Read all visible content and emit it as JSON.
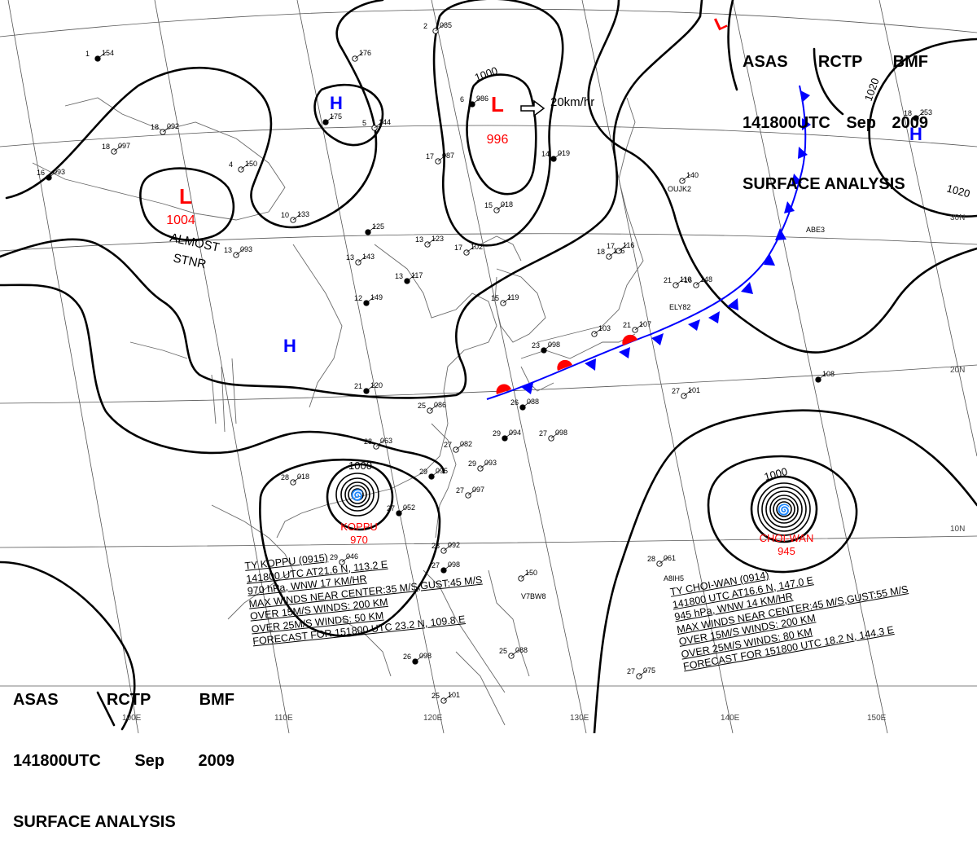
{
  "header": {
    "line1": [
      "ASAS",
      "RCTP",
      "BMF"
    ],
    "line2": [
      "141800UTC",
      "Sep",
      "2009"
    ],
    "line3": "SURFACE ANALYSIS"
  },
  "colors": {
    "low": "#ff0000",
    "high": "#0000ff",
    "front_warm": "#ff0000",
    "front_cold": "#0000ff",
    "isobar": "#000000",
    "grid": "#555555"
  },
  "pressure_centers": [
    {
      "type": "L",
      "label": "L",
      "value": "1004"
    },
    {
      "type": "L",
      "label": "L",
      "value": "996"
    },
    {
      "type": "H",
      "label": "H",
      "value": ""
    },
    {
      "type": "H",
      "label": "H",
      "value": ""
    },
    {
      "type": "H",
      "label": "H",
      "value": ""
    }
  ],
  "isobar_labels": [
    "1000",
    "1000",
    "1000",
    "1020",
    "1020"
  ],
  "annotations": {
    "almost_stnr": [
      "ALMOST",
      "STNR"
    ],
    "motion": "20km/hr"
  },
  "latitude_labels": [
    "30N",
    "20N",
    "10N"
  ],
  "longitude_labels": [
    "100E",
    "110E",
    "120E",
    "130E",
    "140E",
    "150E"
  ],
  "typhoons": [
    {
      "name": "KOPPU",
      "pressure": "970",
      "info": [
        "TY  KOPPU  (0915)",
        "141800 UTC  AT21.6 N, 113.2 E",
        "970 hPa, WNW  17 KM/HR",
        "MAX WINDS NEAR CENTER:35 M/S,GUST:45 M/S",
        "OVER 15M/S WINDS: 200 KM",
        "OVER 25M/S WINDS: 50 KM",
        "FORECAST FOR 151800 UTC 23.2 N, 109.8 E"
      ]
    },
    {
      "name": "CHOI-WAN",
      "pressure": "945",
      "info": [
        "TY  CHOI-WAN  (0914)",
        "141800 UTC  AT16.6 N, 147.0 E",
        "945 hPa, WNW  14 KM/HR",
        "MAX WINDS NEAR CENTER:45 M/S,GUST:55 M/S",
        "OVER 15M/S WINDS: 200 KM",
        "OVER 25M/S WINDS: 80 KM",
        "FORECAST FOR 151800 UTC 18.2 N, 144.3 E"
      ]
    }
  ],
  "station_plots": [
    {
      "p": "154",
      "t": "1"
    },
    {
      "p": "097",
      "t": "18"
    },
    {
      "p": "092",
      "t": "18"
    },
    {
      "p": "093",
      "t": "16"
    },
    {
      "p": "150",
      "t": "4"
    },
    {
      "p": "176",
      "t": ""
    },
    {
      "p": "175",
      "t": ""
    },
    {
      "p": "144",
      "t": "5"
    },
    {
      "p": "133",
      "t": "10"
    },
    {
      "p": "125",
      "t": ""
    },
    {
      "p": "093",
      "t": "13"
    },
    {
      "p": "143",
      "t": "13"
    },
    {
      "p": "149",
      "t": "12"
    },
    {
      "p": "123",
      "t": "13"
    },
    {
      "p": "102",
      "t": "17"
    },
    {
      "p": "117",
      "t": "13"
    },
    {
      "p": "119",
      "t": "15"
    },
    {
      "p": "116",
      "t": "18"
    },
    {
      "p": "120",
      "t": "21"
    },
    {
      "p": "086",
      "t": "25"
    },
    {
      "p": "085",
      "t": "2"
    },
    {
      "p": "986",
      "t": "6"
    },
    {
      "p": "087",
      "t": "17"
    },
    {
      "p": "018",
      "t": "15"
    },
    {
      "p": "019",
      "t": "14"
    },
    {
      "p": "116",
      "t": "17"
    },
    {
      "p": "110",
      "t": "21"
    },
    {
      "p": "098",
      "t": "23"
    },
    {
      "p": "103",
      "t": ""
    },
    {
      "p": "107",
      "t": "21"
    },
    {
      "p": "088",
      "t": "26"
    },
    {
      "p": "063",
      "t": "28"
    },
    {
      "p": "082",
      "t": "27"
    },
    {
      "p": "094",
      "t": "29"
    },
    {
      "p": "098",
      "t": "27"
    },
    {
      "p": "093",
      "t": "29"
    },
    {
      "p": "095",
      "t": "29"
    },
    {
      "p": "097",
      "t": "27"
    },
    {
      "p": "018",
      "t": "28"
    },
    {
      "p": "052",
      "t": "27"
    },
    {
      "p": "046",
      "t": "29"
    },
    {
      "p": "092",
      "t": "28"
    },
    {
      "p": "098",
      "t": "27"
    },
    {
      "p": "150",
      "t": ""
    },
    {
      "p": "088",
      "t": "25"
    },
    {
      "p": "098",
      "t": "26"
    },
    {
      "p": "101",
      "t": "25"
    },
    {
      "p": "101",
      "t": "27"
    },
    {
      "p": "108",
      "t": ""
    },
    {
      "p": "061",
      "t": "28"
    },
    {
      "p": "075",
      "t": "27"
    },
    {
      "p": "253",
      "t": "18"
    },
    {
      "p": "140",
      "t": ""
    },
    {
      "p": "148",
      "t": "16"
    }
  ],
  "station_ids": [
    "OUJK2",
    "ELY82",
    "ABE3",
    "V7BW8",
    "A8IH5"
  ]
}
